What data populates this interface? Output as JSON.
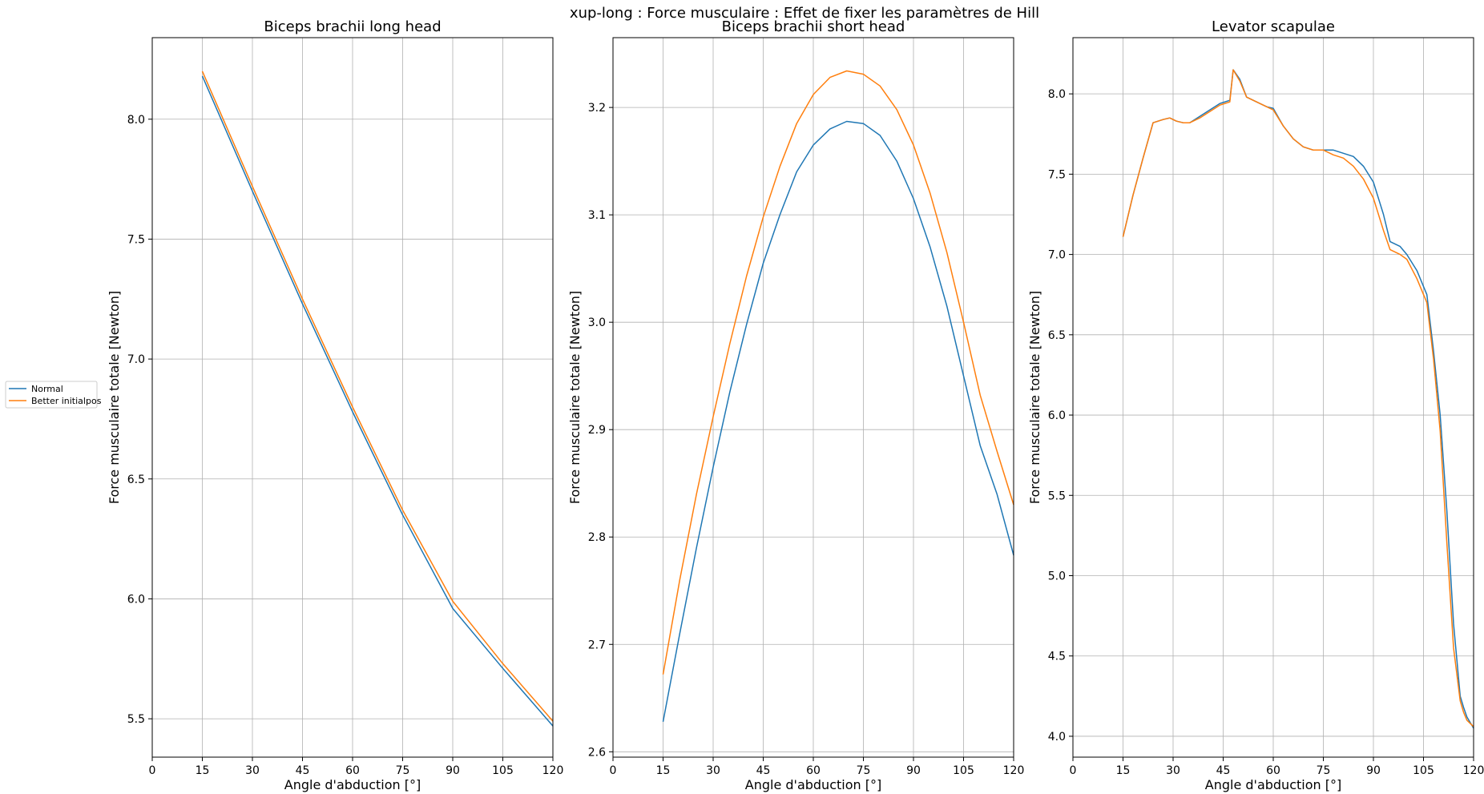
{
  "figure": {
    "suptitle": "xup-long : Force musculaire : Effet de fixer les paramètres de Hill"
  },
  "legend": {
    "placement": "center-left",
    "entries": [
      {
        "label": "Normal",
        "color": "#1f77b4"
      },
      {
        "label": "Better initialpos",
        "color": "#ff7f0e"
      }
    ]
  },
  "chart_data": [
    {
      "type": "line",
      "title": "Biceps brachii long head",
      "xlabel": "Angle d'abduction [°]",
      "ylabel": "Force musculaire totale [Newton]",
      "xlim": [
        0,
        120
      ],
      "ylim": [
        5.34,
        8.34
      ],
      "xticks": [
        0,
        15,
        30,
        45,
        60,
        75,
        90,
        105,
        120
      ],
      "yticks": [
        5.5,
        6.0,
        6.5,
        7.0,
        7.5,
        8.0
      ],
      "grid": true,
      "series": [
        {
          "name": "Normal",
          "color": "#1f77b4",
          "x": [
            15,
            30,
            45,
            60,
            75,
            90,
            105,
            120
          ],
          "y": [
            8.18,
            7.7,
            7.23,
            6.78,
            6.35,
            5.96,
            5.71,
            5.47
          ]
        },
        {
          "name": "Better initialpos",
          "color": "#ff7f0e",
          "x": [
            15,
            30,
            45,
            60,
            75,
            90,
            105,
            120
          ],
          "y": [
            8.2,
            7.72,
            7.25,
            6.8,
            6.37,
            5.99,
            5.73,
            5.49
          ]
        }
      ]
    },
    {
      "type": "line",
      "title": "Biceps brachii short head",
      "xlabel": "Angle d'abduction [°]",
      "ylabel": "Force musculaire totale [Newton]",
      "xlim": [
        0,
        120
      ],
      "ylim": [
        2.595,
        3.265
      ],
      "xticks": [
        0,
        15,
        30,
        45,
        60,
        75,
        90,
        105,
        120
      ],
      "yticks": [
        2.6,
        2.7,
        2.8,
        2.9,
        3.0,
        3.1,
        3.2
      ],
      "grid": true,
      "series": [
        {
          "name": "Normal",
          "color": "#1f77b4",
          "x": [
            15,
            20,
            25,
            30,
            35,
            40,
            45,
            50,
            55,
            60,
            65,
            70,
            75,
            80,
            85,
            90,
            95,
            100,
            105,
            110,
            115,
            120
          ],
          "y": [
            2.628,
            2.71,
            2.79,
            2.865,
            2.935,
            2.998,
            3.055,
            3.1,
            3.14,
            3.165,
            3.18,
            3.187,
            3.185,
            3.174,
            3.15,
            3.115,
            3.07,
            3.015,
            2.95,
            2.885,
            2.84,
            2.783
          ]
        },
        {
          "name": "Better initialpos",
          "color": "#ff7f0e",
          "x": [
            15,
            20,
            25,
            30,
            35,
            40,
            45,
            50,
            55,
            60,
            65,
            70,
            75,
            80,
            85,
            90,
            95,
            100,
            105,
            110,
            115,
            120
          ],
          "y": [
            2.672,
            2.76,
            2.84,
            2.912,
            2.98,
            3.043,
            3.098,
            3.145,
            3.185,
            3.212,
            3.228,
            3.234,
            3.231,
            3.22,
            3.198,
            3.165,
            3.12,
            3.065,
            3.0,
            2.932,
            2.88,
            2.83
          ]
        }
      ]
    },
    {
      "type": "line",
      "title": "Levator scapulae",
      "xlabel": "Angle d'abduction [°]",
      "ylabel": "Force musculaire totale [Newton]",
      "xlim": [
        0,
        120
      ],
      "ylim": [
        3.87,
        8.35
      ],
      "xticks": [
        0,
        15,
        30,
        45,
        60,
        75,
        90,
        105,
        120
      ],
      "yticks": [
        4.0,
        4.5,
        5.0,
        5.5,
        6.0,
        6.5,
        7.0,
        7.5,
        8.0
      ],
      "grid": true,
      "series": [
        {
          "name": "Normal",
          "color": "#1f77b4",
          "x": [
            15,
            18,
            21,
            24,
            27,
            29,
            31,
            33,
            35,
            38,
            41,
            44,
            47,
            48,
            50,
            52,
            55,
            58,
            60,
            63,
            66,
            69,
            72,
            75,
            78,
            81,
            84,
            87,
            90,
            93,
            95,
            98,
            100,
            103,
            106,
            108,
            110,
            112,
            114,
            116,
            117,
            118,
            120
          ],
          "y": [
            7.11,
            7.37,
            7.6,
            7.82,
            7.84,
            7.85,
            7.83,
            7.82,
            7.82,
            7.86,
            7.9,
            7.94,
            7.96,
            8.15,
            8.09,
            7.98,
            7.95,
            7.92,
            7.91,
            7.8,
            7.72,
            7.67,
            7.65,
            7.65,
            7.65,
            7.63,
            7.61,
            7.55,
            7.45,
            7.25,
            7.08,
            7.05,
            7.0,
            6.9,
            6.75,
            6.4,
            6.0,
            5.4,
            4.7,
            4.25,
            4.18,
            4.12,
            4.05
          ]
        },
        {
          "name": "Better initialpos",
          "color": "#ff7f0e",
          "x": [
            15,
            18,
            21,
            24,
            27,
            29,
            31,
            33,
            35,
            38,
            41,
            44,
            47,
            48,
            50,
            52,
            55,
            58,
            60,
            63,
            66,
            69,
            72,
            75,
            78,
            81,
            84,
            87,
            90,
            93,
            95,
            98,
            100,
            103,
            106,
            108,
            110,
            112,
            114,
            116,
            117,
            118,
            120
          ],
          "y": [
            7.11,
            7.37,
            7.6,
            7.82,
            7.84,
            7.85,
            7.83,
            7.82,
            7.82,
            7.85,
            7.89,
            7.93,
            7.95,
            8.15,
            8.08,
            7.98,
            7.95,
            7.92,
            7.9,
            7.8,
            7.72,
            7.67,
            7.65,
            7.65,
            7.62,
            7.6,
            7.55,
            7.47,
            7.35,
            7.15,
            7.03,
            7.0,
            6.97,
            6.85,
            6.7,
            6.35,
            5.9,
            5.2,
            4.55,
            4.22,
            4.15,
            4.1,
            4.06
          ]
        }
      ]
    }
  ]
}
